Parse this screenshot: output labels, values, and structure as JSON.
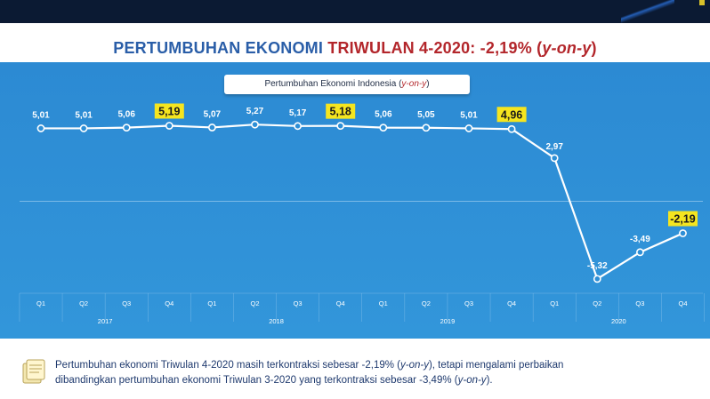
{
  "title": {
    "part1": "PERTUMBUHAN EKONOMI ",
    "part2": "TRIWULAN 4-2020: -2,19% (",
    "part3": "y-on-y",
    "part4": ")"
  },
  "subtitle": {
    "text": "Pertumbuhan Ekonomi Indonesia (",
    "italic": "y-on-y",
    "close": ")"
  },
  "chart_data": {
    "type": "line",
    "title": "Pertumbuhan Ekonomi Indonesia (y-on-y)",
    "x": [
      "Q1",
      "Q2",
      "Q3",
      "Q4",
      "Q1",
      "Q2",
      "Q3",
      "Q4",
      "Q1",
      "Q2",
      "Q3",
      "Q4",
      "Q1",
      "Q2",
      "Q3",
      "Q4"
    ],
    "groups": [
      {
        "label": "2017",
        "span": 4
      },
      {
        "label": "2018",
        "span": 4
      },
      {
        "label": "2019",
        "span": 4
      },
      {
        "label": "2020",
        "span": 4
      }
    ],
    "values": [
      5.01,
      5.01,
      5.06,
      5.19,
      5.07,
      5.27,
      5.17,
      5.18,
      5.06,
      5.05,
      5.01,
      4.96,
      2.97,
      -5.32,
      -3.49,
      -2.19
    ],
    "labels": [
      "5,01",
      "5,01",
      "5,06",
      "5,19",
      "5,07",
      "5,27",
      "5,17",
      "5,18",
      "5,06",
      "5,05",
      "5,01",
      "4,96",
      "2,97",
      "-5,32",
      "-3,49",
      "-2,19"
    ],
    "highlighted": [
      3,
      7,
      11,
      15
    ],
    "ylim": [
      -6,
      6.5
    ],
    "zero_line": true,
    "colors": {
      "background": "#2e8fd6",
      "line": "#ffffff",
      "highlight": "#f5e51f",
      "text": "#ffffff"
    }
  },
  "note": {
    "line1a": "Pertumbuhan ekonomi Triwulan 4-2020 masih terkontraksi sebesar -2,19% (",
    "line1b": "y-on-y",
    "line1c": "), tetapi mengalami perbaikan",
    "line2a": "dibandingkan pertumbuhan ekonomi Triwulan 3-2020 yang terkontraksi sebesar -3,49% (",
    "line2b": "y-on-y",
    "line2c": ").",
    "icon": "document-note-icon"
  }
}
